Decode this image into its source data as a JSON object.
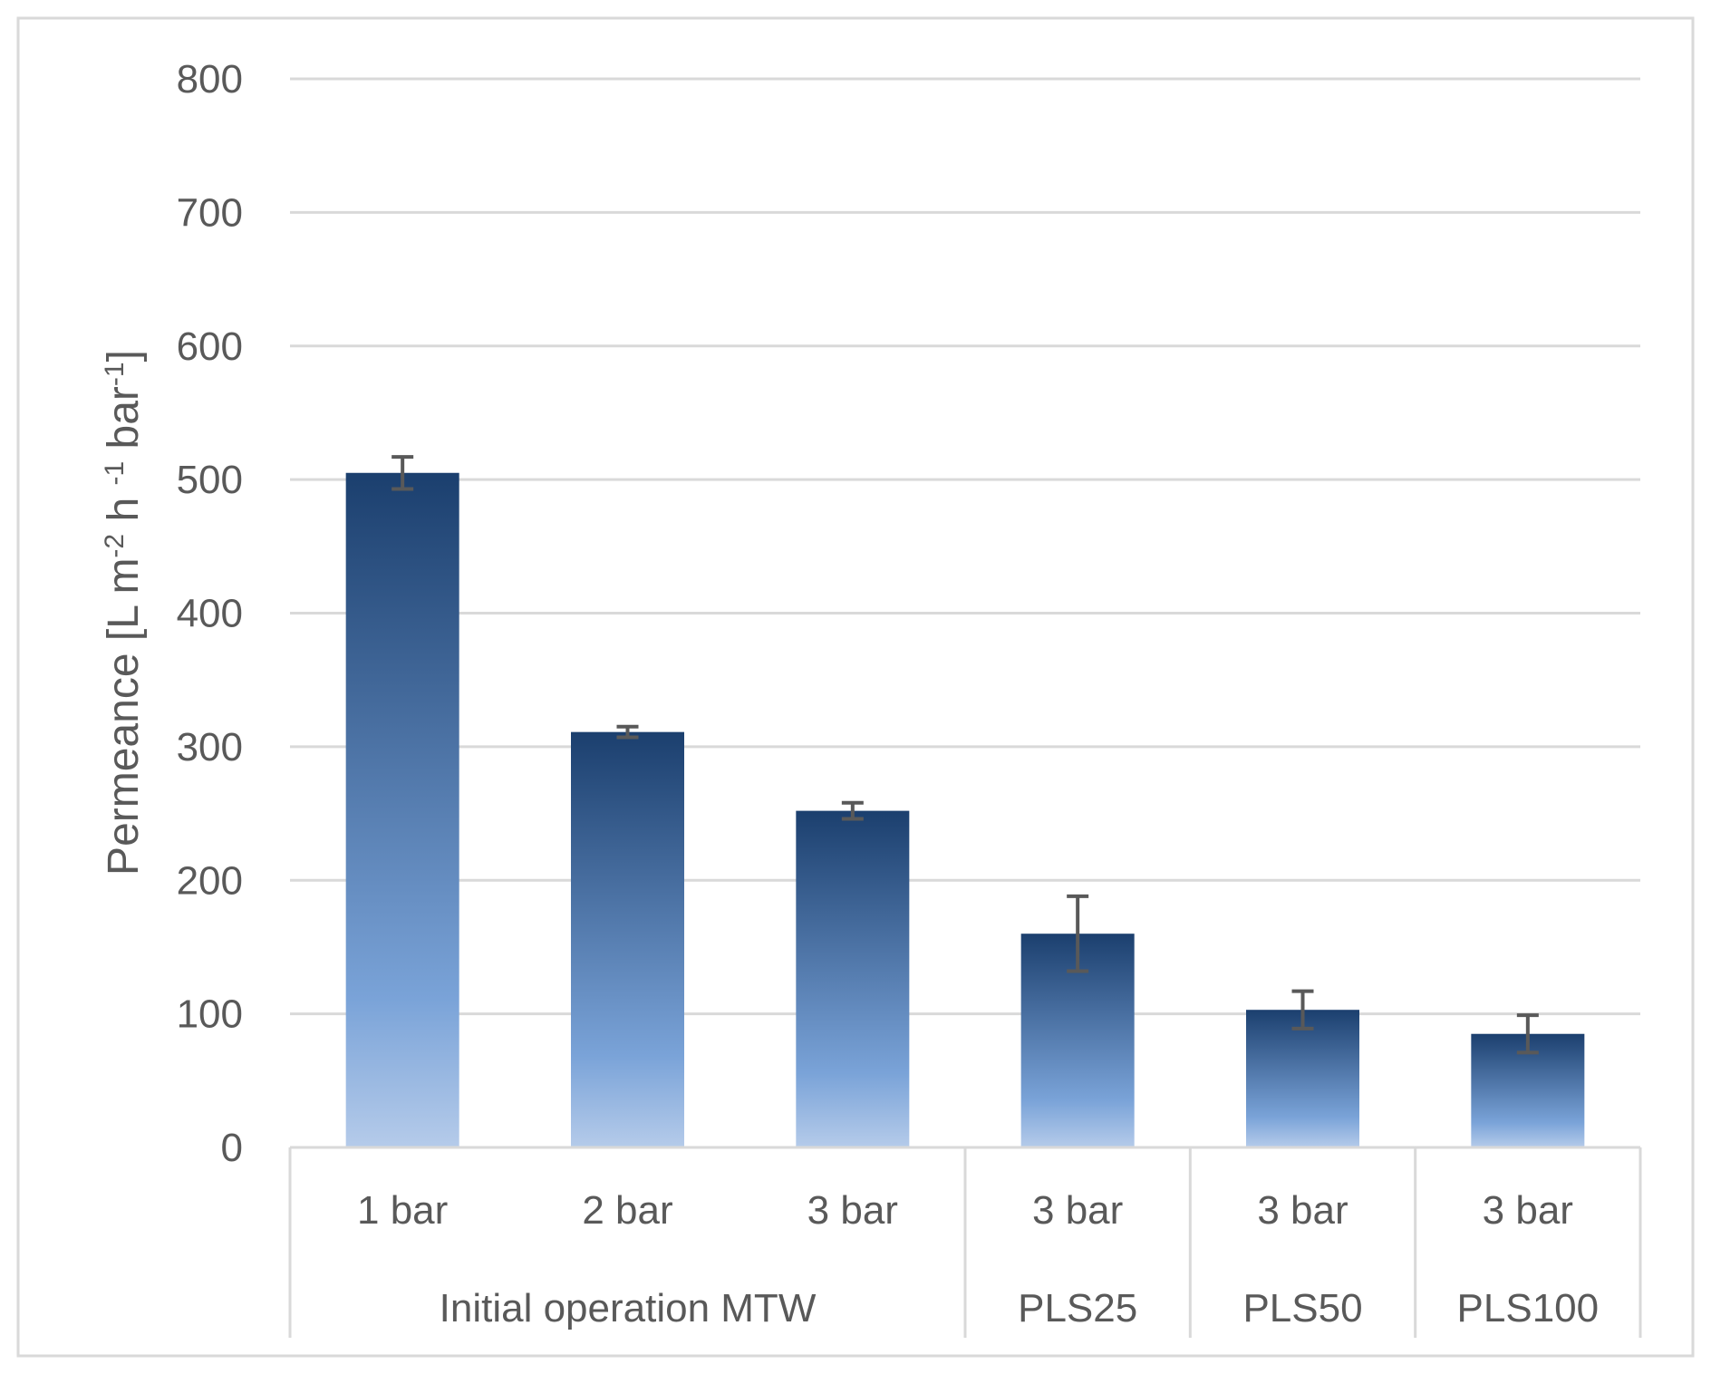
{
  "chart_data": {
    "type": "bar",
    "title": "",
    "ylabel": {
      "parts": [
        {
          "text": "Permeance [L m",
          "sup": false
        },
        {
          "text": "-2",
          "sup": true
        },
        {
          "text": " h ",
          "sup": false
        },
        {
          "text": "-1",
          "sup": true
        },
        {
          "text": " bar",
          "sup": false
        },
        {
          "text": "-1",
          "sup": true
        },
        {
          "text": "]",
          "sup": false
        }
      ]
    },
    "ylim": [
      0,
      800
    ],
    "yticks": [
      "0",
      "100",
      "200",
      "300",
      "400",
      "500",
      "600",
      "700",
      "800"
    ],
    "grid": true,
    "categories": [
      "1 bar",
      "2 bar",
      "3 bar",
      "3 bar",
      "3 bar",
      "3 bar"
    ],
    "groups": [
      {
        "label": "Initial operation MTW",
        "count": 3
      },
      {
        "label": "PLS25",
        "count": 1
      },
      {
        "label": "PLS50",
        "count": 1
      },
      {
        "label": "PLS100",
        "count": 1
      }
    ],
    "values": [
      505,
      311,
      252,
      160,
      103,
      85
    ],
    "error": [
      12,
      4,
      6,
      28,
      14,
      14
    ],
    "colors": {
      "bar_top": "#1b3f6e",
      "bar_mid": "#7aa3d8",
      "bar_bottom": "#b5cbea",
      "error": "#595959",
      "grid": "#d9d9d9",
      "axis": "#d9d9d9",
      "frame": "#d9d9d9"
    }
  }
}
